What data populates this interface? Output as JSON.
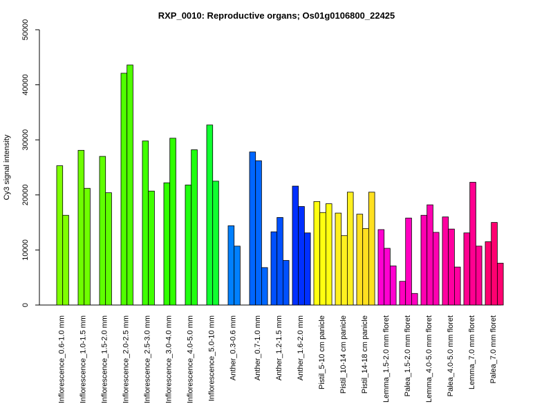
{
  "chart_data": {
    "type": "bar",
    "title": "RXP_0010: Reproductive organs; Os01g0106800_22425",
    "xlabel": "",
    "ylabel": "Cy3 signal intensity",
    "ylim": [
      0,
      50000
    ],
    "yticks": [
      "0",
      "10000",
      "20000",
      "30000",
      "40000",
      "50000"
    ],
    "grid": false,
    "groups": [
      {
        "label": "Inflorescence_0.6-1.0 mm",
        "color": "#7FFF00",
        "values": [
          25300,
          16300
        ]
      },
      {
        "label": "Inflorescence_1.0-1.5 mm",
        "color": "#6FFF00",
        "values": [
          28100,
          21200
        ]
      },
      {
        "label": "Inflorescence_1.5-2.0 mm",
        "color": "#5FFF00",
        "values": [
          27000,
          20400
        ]
      },
      {
        "label": "Inflorescence_2.0-2.5 mm",
        "color": "#4FFF00",
        "values": [
          42100,
          43600
        ]
      },
      {
        "label": "Inflorescence_2.5-3.0 mm",
        "color": "#40FF00",
        "values": [
          29800,
          20700
        ]
      },
      {
        "label": "Inflorescence_3.0-4.0 mm",
        "color": "#30FF00",
        "values": [
          22200,
          30300
        ]
      },
      {
        "label": "Inflorescence_4.0-5.0 mm",
        "color": "#20FF10",
        "values": [
          21800,
          28200
        ]
      },
      {
        "label": "Inflorescence_5.0-10 mm",
        "color": "#10FF30",
        "values": [
          32700,
          22500
        ]
      },
      {
        "label": "Anther_0.3-0.6 mm",
        "color": "#0080FF",
        "values": [
          14400,
          10700
        ]
      },
      {
        "label": "Anther_0.7-1.0 mm",
        "color": "#0066FF",
        "values": [
          27800,
          26200,
          6800
        ]
      },
      {
        "label": "Anther_1.2-1.5 mm",
        "color": "#0050FF",
        "values": [
          13300,
          15900,
          8100
        ]
      },
      {
        "label": "Anther_1.6-2.0 mm",
        "color": "#0030FF",
        "values": [
          21600,
          17900,
          13100
        ]
      },
      {
        "label": "Pistil_5-10 cm panicle",
        "color": "#FFFF10",
        "values": [
          18800,
          16800,
          18400
        ]
      },
      {
        "label": "Pistil_10-14 cm panicle",
        "color": "#FFF020",
        "values": [
          16700,
          12600,
          20500
        ]
      },
      {
        "label": "Pistil_14-18 cm panicle",
        "color": "#FFE020",
        "values": [
          16500,
          13900,
          20500
        ]
      },
      {
        "label": "Lemma_1.5-2.0 mm floret",
        "color": "#FF00D0",
        "values": [
          13700,
          10300,
          7100
        ]
      },
      {
        "label": "Palea_1.5-2.0 mm floret",
        "color": "#FF00C0",
        "values": [
          4300,
          15800,
          2100
        ]
      },
      {
        "label": "Lemma_4.0-5.0 mm floret",
        "color": "#FF00B0",
        "values": [
          16300,
          18200,
          13200
        ]
      },
      {
        "label": "Palea_4.0-5.0 mm floret",
        "color": "#FF00A0",
        "values": [
          16000,
          13800,
          6900
        ]
      },
      {
        "label": "Lemma_7.0 mm floret",
        "color": "#FF0090",
        "values": [
          13100,
          22300,
          10700
        ]
      },
      {
        "label": "Palea_7.0 mm floret",
        "color": "#FF0070",
        "values": [
          11500,
          15000,
          7600
        ]
      }
    ]
  }
}
